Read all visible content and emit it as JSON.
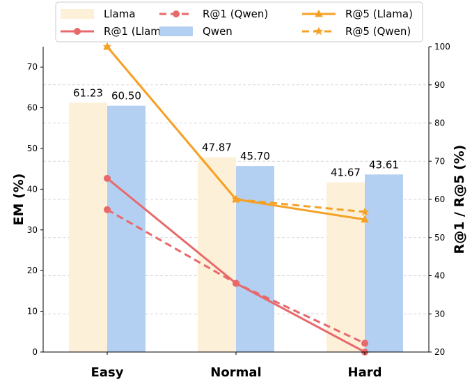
{
  "chart_data": {
    "type": "bar",
    "categories": [
      "Easy",
      "Normal",
      "Hard"
    ],
    "bar_series": [
      {
        "name": "Llama",
        "values": [
          61.23,
          47.87,
          41.67
        ],
        "color": "#fdf0d9"
      },
      {
        "name": "Qwen",
        "values": [
          60.5,
          45.7,
          43.61
        ],
        "color": "#b3cff2"
      }
    ],
    "data_labels": [
      [
        "61.23",
        "47.87",
        "41.67"
      ],
      [
        "60.50",
        "45.70",
        "43.61"
      ]
    ],
    "line_series": [
      {
        "name": "R@1 (Llama)",
        "values": [
          65.5,
          38.0,
          20.0
        ],
        "color": "#e8696b",
        "dash": false,
        "marker": "circle"
      },
      {
        "name": "R@5 (Llama)",
        "values": [
          100.0,
          60.0,
          54.7
        ],
        "color": "#f5a126",
        "dash": false,
        "marker": "triangle"
      },
      {
        "name": "R@1 (Qwen)",
        "values": [
          57.3,
          38.0,
          22.3
        ],
        "color": "#e8696b",
        "dash": true,
        "marker": "circle"
      },
      {
        "name": "R@5 (Qwen)",
        "values": [
          100.0,
          60.0,
          56.7
        ],
        "color": "#f5a126",
        "dash": true,
        "marker": "star"
      }
    ],
    "legend_order": [
      "Llama",
      "R@1 (Llama)",
      "R@1 (Qwen)",
      "Qwen",
      "R@5 (Llama)",
      "R@5 (Qwen)"
    ],
    "ylabel_left": "EM (%)",
    "ylabel_right": "R@1 / R@5 (%)",
    "ylim_left": [
      0,
      75
    ],
    "yticks_left": [
      0,
      10,
      20,
      30,
      40,
      50,
      60,
      70
    ],
    "ylim_right": [
      20,
      100
    ],
    "yticks_right": [
      20,
      30,
      40,
      50,
      60,
      70,
      80,
      90,
      100
    ],
    "grid": "horizontal dashed",
    "legend_position": "top"
  }
}
